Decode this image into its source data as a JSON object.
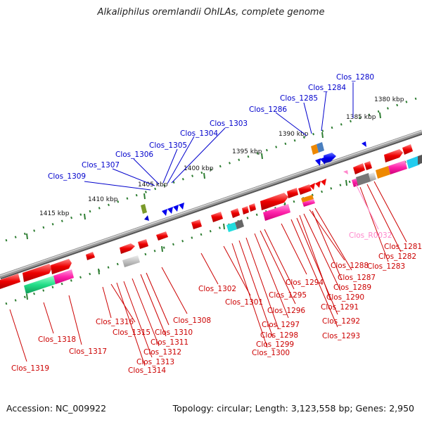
{
  "title": "Alkaliphilus oremlandii OhILAs, complete genome",
  "footer": {
    "accession": "Accession: NC_009922",
    "summary": "Topology: circular; Length: 3,123,558 bp; Genes: 2,950"
  },
  "scale_labels": [
    "1380 kbp",
    "1385 kbp",
    "1390 kbp",
    "1395 kbp",
    "1400 kbp",
    "1405 kbp",
    "1410 kbp",
    "1415 kbp"
  ],
  "plus_strand_labels": [
    "Clos_1280",
    "Clos_1284",
    "Clos_1285",
    "Clos_1286",
    "Clos_1303",
    "Clos_1304",
    "Clos_1305",
    "Clos_1306",
    "Clos_1307",
    "Clos_1309"
  ],
  "minus_strand_labels": [
    "Clos_1281",
    "Clos_1282",
    "Clos_1283",
    "Clos_1287",
    "Clos_1288",
    "Clos_1289",
    "Clos_1290",
    "Clos_1291",
    "Clos_1292",
    "Clos_1293",
    "Clos_1294",
    "Clos_1295",
    "Clos_1296",
    "Clos_1297",
    "Clos_1298",
    "Clos_1299",
    "Clos_1300",
    "Clos_1301",
    "Clos_1302",
    "Clos_1308",
    "Clos_1310",
    "Clos_1311",
    "Clos_1312",
    "Clos_1313",
    "Clos_1314",
    "Clos_1315",
    "Clos_1316",
    "Clos_1317",
    "Clos_1318",
    "Clos_1319"
  ],
  "rna_labels": [
    "Clos_R0032"
  ],
  "colors": {
    "plus_label": "#0000cc",
    "minus_label": "#cc0000",
    "rna_label": "#ff88cc",
    "backbone": "#8a8a8a",
    "ticks": "#2e7d32"
  }
}
